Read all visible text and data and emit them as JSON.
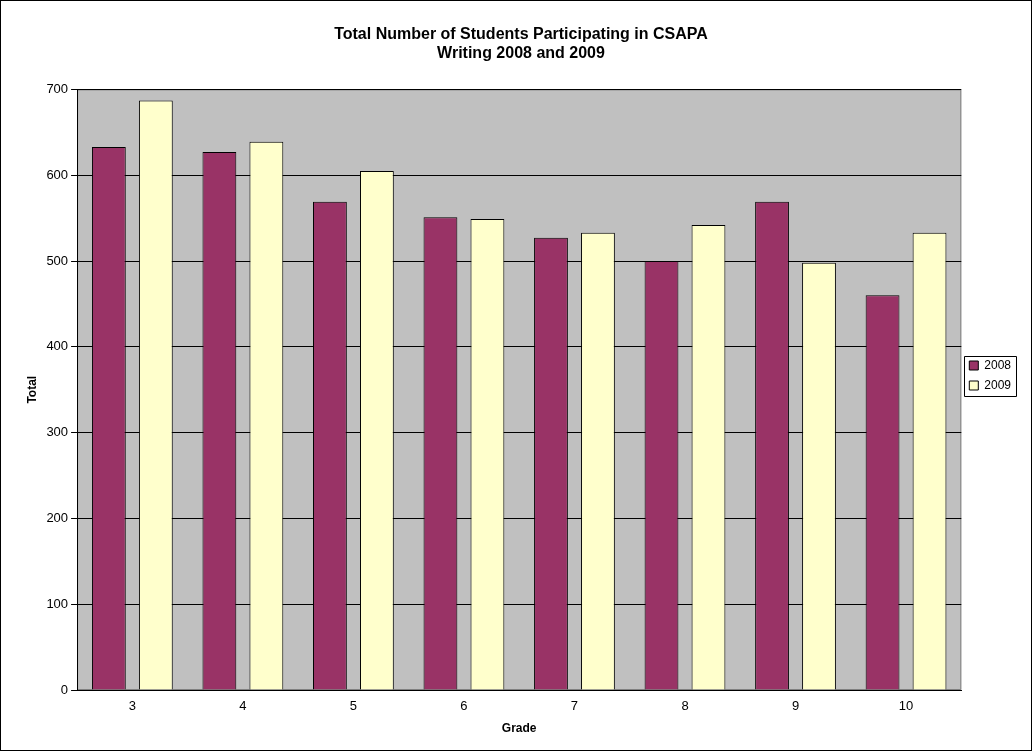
{
  "chart_data": {
    "type": "bar",
    "title": "Total Number of Students Participating in CSAPA\nWriting 2008 and 2009",
    "xlabel": "Grade",
    "ylabel": "Total",
    "categories": [
      "3",
      "4",
      "5",
      "6",
      "7",
      "8",
      "9",
      "10"
    ],
    "series": [
      {
        "name": "2008",
        "color": "#993366",
        "values": [
          633,
          627,
          569,
          551,
          527,
          500,
          569,
          460
        ]
      },
      {
        "name": "2009",
        "color": "#ffffcc",
        "values": [
          687,
          639,
          605,
          549,
          533,
          542,
          498,
          533
        ]
      }
    ],
    "ylim": [
      0,
      700
    ],
    "yticks": [
      0,
      100,
      200,
      300,
      400,
      500,
      600,
      700
    ],
    "grid": "y",
    "legend": "right"
  }
}
